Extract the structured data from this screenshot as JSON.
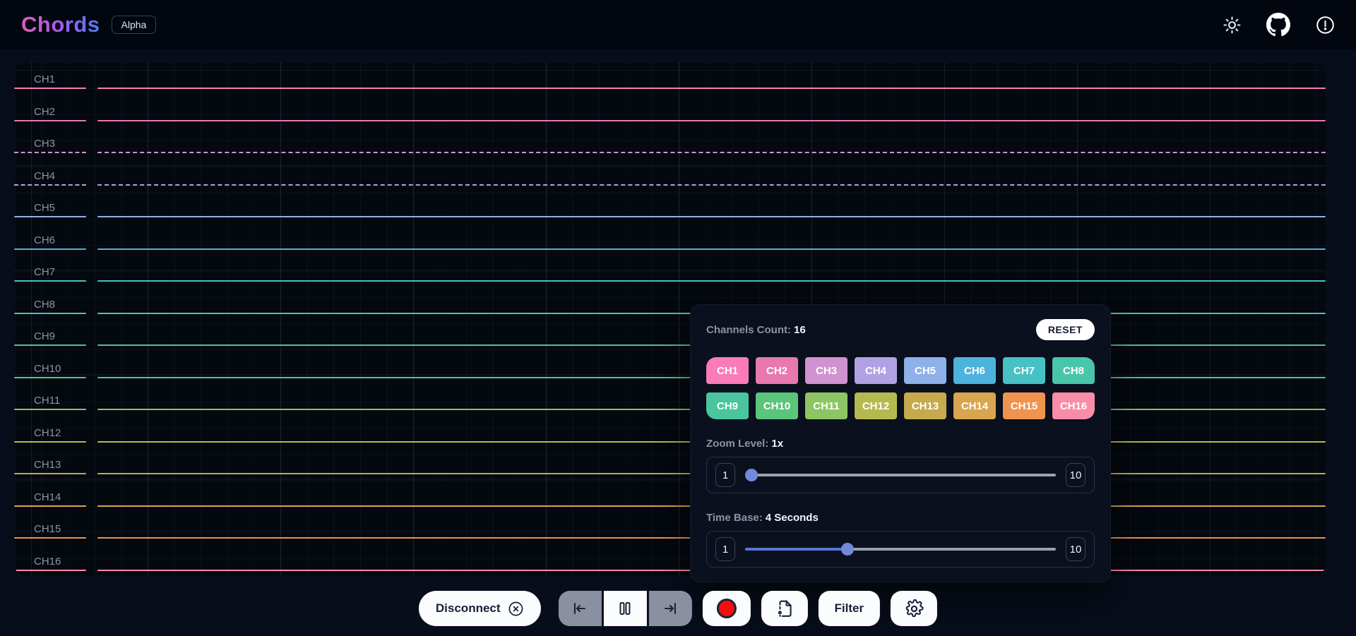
{
  "app": {
    "title": "Chords",
    "badge": "Alpha"
  },
  "navbar": {
    "icons": [
      "theme-toggle-icon",
      "github-icon",
      "alert-icon"
    ]
  },
  "channels": [
    {
      "id": "CH1",
      "color": "#f97bb8",
      "dashed": false
    },
    {
      "id": "CH2",
      "color": "#e779af",
      "dashed": false
    },
    {
      "id": "CH3",
      "color": "#d193d0",
      "dashed": true
    },
    {
      "id": "CH4",
      "color": "#b0a2e2",
      "dashed": true
    },
    {
      "id": "CH5",
      "color": "#8db1e8",
      "dashed": false
    },
    {
      "id": "CH6",
      "color": "#4db3dd",
      "dashed": false
    },
    {
      "id": "CH7",
      "color": "#47c1c4",
      "dashed": false
    },
    {
      "id": "CH8",
      "color": "#4ac5a9",
      "dashed": false
    },
    {
      "id": "CH9",
      "color": "#4ac59d",
      "dashed": false
    },
    {
      "id": "CH10",
      "color": "#5ac57b",
      "dashed": false
    },
    {
      "id": "CH11",
      "color": "#8dc565",
      "dashed": false
    },
    {
      "id": "CH12",
      "color": "#b6ba4e",
      "dashed": false
    },
    {
      "id": "CH13",
      "color": "#c5aa4e",
      "dashed": false
    },
    {
      "id": "CH14",
      "color": "#d9a54e",
      "dashed": false
    },
    {
      "id": "CH15",
      "color": "#f0934e",
      "dashed": false
    },
    {
      "id": "CH16",
      "color": "#f98da9",
      "dashed": false
    }
  ],
  "panel": {
    "count_label": "Channels Count:",
    "count_value": "16",
    "reset_label": "RESET",
    "zoom": {
      "label": "Zoom Level:",
      "value": "1x",
      "min": "1",
      "max": "10",
      "percent": 2
    },
    "timebase": {
      "label": "Time Base:",
      "value": "4 Seconds",
      "min": "1",
      "max": "10",
      "percent": 33
    }
  },
  "toolbar": {
    "disconnect_label": "Disconnect",
    "filter_label": "Filter",
    "icons": [
      "circle-x-icon",
      "skip-to-start-icon",
      "pause-icon",
      "skip-to-end-icon",
      "record-icon",
      "file-save-icon",
      "settings-gear-icon"
    ]
  },
  "colors": {
    "accent_blue": "#5577d2",
    "thumb_blue": "#7289da",
    "record_red": "#f60d0d",
    "chart_bg": "#04080f",
    "panel_bg": "#0a101d",
    "nav_bg": "#02060f"
  }
}
